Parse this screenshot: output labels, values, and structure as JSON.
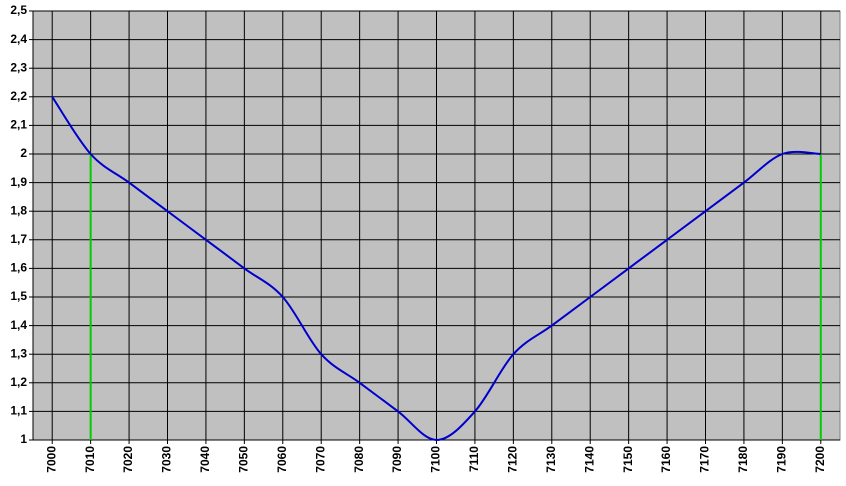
{
  "chart_data": {
    "type": "line",
    "x": [
      7000,
      7010,
      7020,
      7030,
      7040,
      7050,
      7060,
      7070,
      7080,
      7090,
      7100,
      7110,
      7120,
      7130,
      7140,
      7150,
      7160,
      7170,
      7180,
      7190,
      7200
    ],
    "series": [
      {
        "color": "#0000cc",
        "values": [
          2.2,
          2.0,
          1.9,
          1.8,
          1.7,
          1.6,
          1.5,
          1.3,
          1.2,
          1.1,
          1.0,
          1.1,
          1.3,
          1.4,
          1.5,
          1.6,
          1.7,
          1.8,
          1.9,
          2.0,
          2.0
        ]
      }
    ],
    "vertical_lines": {
      "color": "#00cc00",
      "x": [
        7010,
        7200
      ],
      "values": [
        2.0,
        2.0
      ]
    },
    "xlim": [
      6995,
      7205
    ],
    "xticks": [
      7000,
      7010,
      7020,
      7030,
      7040,
      7050,
      7060,
      7070,
      7080,
      7090,
      7100,
      7110,
      7120,
      7130,
      7140,
      7150,
      7160,
      7170,
      7180,
      7190,
      7200
    ],
    "ylim": [
      1,
      2.5
    ],
    "yticks": [
      1,
      {
        "value": 1.1,
        "label": "1,1"
      },
      {
        "value": 1.2,
        "label": "1,2"
      },
      {
        "value": 1.3,
        "label": "1,3"
      },
      {
        "value": 1.4,
        "label": "1,4"
      },
      {
        "value": 1.5,
        "label": "1,5"
      },
      {
        "value": 1.6,
        "label": "1,6"
      },
      {
        "value": 1.7,
        "label": "1,7"
      },
      {
        "value": 1.8,
        "label": "1,8"
      },
      {
        "value": 1.9,
        "label": "1,9"
      },
      2,
      {
        "value": 2.1,
        "label": "2,1"
      },
      {
        "value": 2.2,
        "label": "2,2"
      },
      {
        "value": 2.3,
        "label": "2,3"
      },
      {
        "value": 2.4,
        "label": "2,4"
      },
      {
        "value": 2.5,
        "label": "2,5"
      }
    ],
    "grid": true,
    "plot_background": "#c0c0c0"
  }
}
